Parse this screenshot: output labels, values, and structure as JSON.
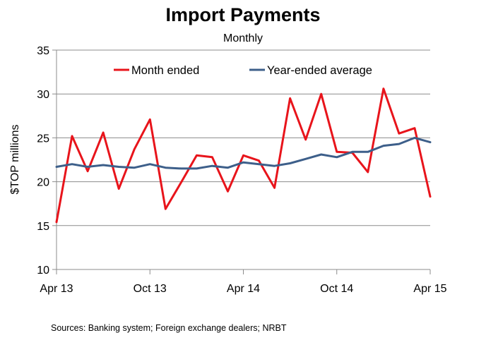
{
  "chart_data": {
    "type": "line",
    "title": "Import Payments",
    "subtitle": "Monthly",
    "ylabel": "$TOP millions",
    "xlabel": "",
    "ylim": [
      10,
      35
    ],
    "yticks": [
      10,
      15,
      20,
      25,
      30,
      35
    ],
    "grid": true,
    "legend_position": "top",
    "x_tick_labels": [
      {
        "index": 0,
        "label": "Apr 13"
      },
      {
        "index": 6,
        "label": "Oct 13"
      },
      {
        "index": 12,
        "label": "Apr 14"
      },
      {
        "index": 18,
        "label": "Oct 14"
      },
      {
        "index": 24,
        "label": "Apr 15"
      }
    ],
    "series": [
      {
        "name": "Month ended",
        "color": "#e8141b",
        "values": [
          15.4,
          25.2,
          21.2,
          25.6,
          19.2,
          23.7,
          27.1,
          16.9,
          19.9,
          23.0,
          22.8,
          18.9,
          23.0,
          22.4,
          19.3,
          29.5,
          24.8,
          30.0,
          23.4,
          23.3,
          21.1,
          30.6,
          25.5,
          26.1,
          18.3
        ]
      },
      {
        "name": "Year-ended average",
        "color": "#3d5f8a",
        "values": [
          21.7,
          22.0,
          21.7,
          21.9,
          21.7,
          21.6,
          22.0,
          21.6,
          21.5,
          21.5,
          21.8,
          21.6,
          22.2,
          22.0,
          21.8,
          22.1,
          22.6,
          23.1,
          22.8,
          23.4,
          23.4,
          24.1,
          24.3,
          25.0,
          24.5
        ]
      }
    ]
  },
  "source_note": "Sources: Banking system; Foreign exchange dealers; NRBT"
}
